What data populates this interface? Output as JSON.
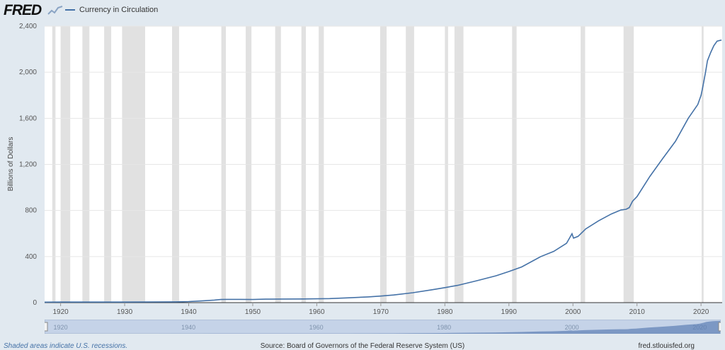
{
  "header": {
    "logo": "FRED",
    "legend_label": "Currency in Circulation"
  },
  "footer": {
    "left": "Shaded areas indicate U.S. recessions.",
    "source": "Source: Board of Governors of the Federal Reserve System (US)",
    "site": "fred.stlouisfed.org"
  },
  "colors": {
    "series": "#4572a7",
    "recession": "#e1e1e1",
    "background": "#e1e9f0"
  },
  "navigator": {
    "ticks": [
      "1920",
      "1940",
      "1960",
      "1980",
      "2000",
      "2020"
    ]
  },
  "chart_data": {
    "type": "line",
    "title": "",
    "xlabel": "",
    "ylabel": "Billions of Dollars",
    "xlim": [
      1917.5,
      2023.3
    ],
    "ylim": [
      0,
      2400
    ],
    "yticks": [
      0,
      400,
      800,
      1200,
      1600,
      2000,
      2400
    ],
    "ytick_labels": [
      "0",
      "400",
      "800",
      "1,200",
      "1,600",
      "2,000",
      "2,400"
    ],
    "xticks": [
      1920,
      1930,
      1940,
      1950,
      1960,
      1970,
      1980,
      1990,
      2000,
      2010,
      2020
    ],
    "grid": true,
    "legend_position": "top-left",
    "recessions": [
      [
        1918.7,
        1919.2
      ],
      [
        1920.0,
        1921.5
      ],
      [
        1923.4,
        1924.5
      ],
      [
        1926.8,
        1927.9
      ],
      [
        1929.6,
        1933.2
      ],
      [
        1937.4,
        1938.5
      ],
      [
        1945.1,
        1945.8
      ],
      [
        1948.9,
        1949.8
      ],
      [
        1953.5,
        1954.4
      ],
      [
        1957.6,
        1958.3
      ],
      [
        1960.3,
        1961.1
      ],
      [
        1969.9,
        1970.9
      ],
      [
        1973.9,
        1975.2
      ],
      [
        1980.0,
        1980.5
      ],
      [
        1981.5,
        1982.9
      ],
      [
        1990.5,
        1991.2
      ],
      [
        2001.2,
        2001.9
      ],
      [
        2007.9,
        2009.5
      ],
      [
        2020.1,
        2020.4
      ]
    ],
    "series": [
      {
        "name": "Currency in Circulation",
        "x": [
          1917.5,
          1920,
          1925,
          1930,
          1935,
          1938,
          1940,
          1942,
          1944,
          1945,
          1946,
          1948,
          1950,
          1952,
          1955,
          1958,
          1960,
          1962,
          1965,
          1968,
          1970,
          1972,
          1975,
          1978,
          1980,
          1982,
          1985,
          1988,
          1990,
          1992,
          1995,
          1997,
          1999,
          1999.85,
          2000.1,
          2000.8,
          2002,
          2004,
          2006,
          2007.5,
          2008.3,
          2008.8,
          2009.3,
          2010,
          2012,
          2014,
          2016,
          2018,
          2019.5,
          2020.0,
          2020.3,
          2020.7,
          2021,
          2021.5,
          2022,
          2022.5,
          2023.2
        ],
        "y": [
          4,
          5,
          5,
          5,
          6,
          7,
          9,
          15,
          22,
          27,
          28,
          28,
          27,
          30,
          31,
          32,
          33,
          35,
          42,
          50,
          57,
          66,
          86,
          112,
          130,
          150,
          190,
          233,
          270,
          310,
          400,
          445,
          515,
          598,
          560,
          575,
          640,
          710,
          770,
          805,
          810,
          825,
          880,
          920,
          1095,
          1250,
          1400,
          1600,
          1720,
          1800,
          1880,
          2000,
          2100,
          2170,
          2230,
          2270,
          2280
        ]
      }
    ]
  }
}
